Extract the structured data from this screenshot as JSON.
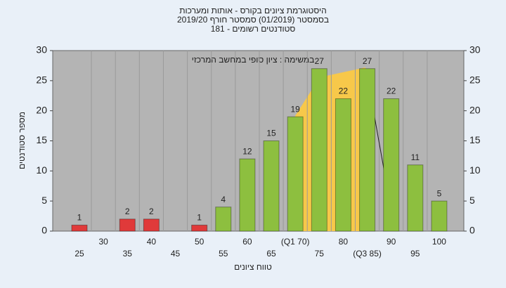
{
  "chart_data": {
    "type": "bar",
    "title": [
      "היסטוגרמת ציונים בקורס - אותות ומערכות",
      "בסמסטר  (01/2019)  סמסטר חורף 2019/20",
      "סטודנטים רשומים - 181"
    ],
    "annotation": "במשימה : ציון סופי במחשב המרכזי",
    "x_label": "טווח ציונים",
    "y_label": "מספר סטודנטים",
    "categories": [
      "25",
      "30",
      "35",
      "40",
      "45",
      "50",
      "55",
      "60",
      "65",
      "(Q1 70)",
      "75",
      "80",
      "(Q3 85)",
      "90",
      "95",
      "100"
    ],
    "values": [
      1,
      0,
      2,
      2,
      0,
      1,
      4,
      12,
      15,
      19,
      27,
      22,
      27,
      22,
      11,
      5
    ],
    "colors": [
      "#e03a3a",
      "#e03a3a",
      "#e03a3a",
      "#e03a3a",
      "#e03a3a",
      "#e03a3a",
      "#8dbf3f",
      "#8dbf3f",
      "#8dbf3f",
      "#8dbf3f",
      "#8dbf3f",
      "#8dbf3f",
      "#8dbf3f",
      "#8dbf3f",
      "#8dbf3f",
      "#8dbf3f"
    ],
    "ylim": [
      0,
      30
    ],
    "yticks": [
      0,
      5,
      10,
      15,
      20,
      25,
      30
    ]
  }
}
